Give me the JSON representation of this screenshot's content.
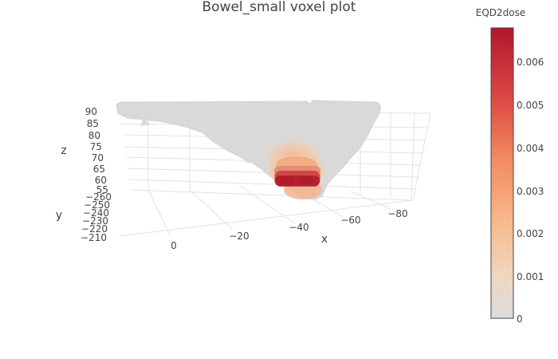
{
  "chart_data": {
    "type": "scatter3d",
    "title": "Bowel_small voxel plot",
    "x_axis": {
      "label": "x",
      "ticks": [
        "0",
        "−20",
        "−40",
        "−60",
        "−80"
      ]
    },
    "y_axis": {
      "label": "y",
      "ticks": [
        "−260",
        "−250",
        "−240",
        "−230",
        "−220",
        "−210"
      ]
    },
    "z_axis": {
      "label": "z",
      "ticks": [
        "90",
        "85",
        "80",
        "75",
        "70",
        "65",
        "60",
        "55"
      ]
    },
    "colorbar": {
      "title": "EQD2dose",
      "ticks": [
        "0.006",
        "0.005",
        "0.004",
        "0.003",
        "0.002",
        "0.001",
        "0"
      ],
      "range": [
        0,
        0.0068
      ],
      "colorscale": [
        "#dcdcdc",
        "#f6c7a0",
        "#f59f6b",
        "#e8634a",
        "#c9263a",
        "#b0172a"
      ]
    },
    "grid": true,
    "dose_hotspot_range": {
      "x": [
        -40,
        -60
      ],
      "z": [
        55,
        75
      ],
      "max_value": 0.0068
    }
  }
}
